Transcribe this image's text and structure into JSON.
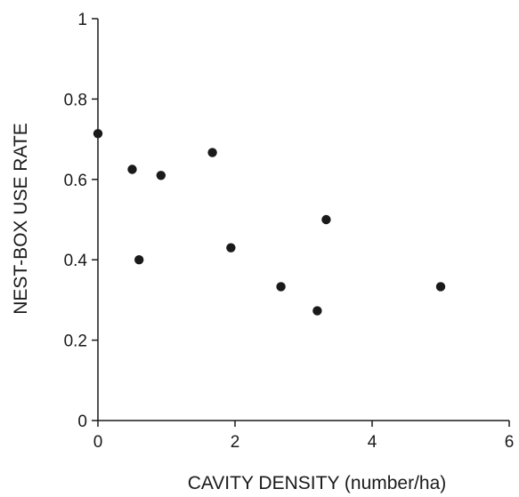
{
  "chart_data": {
    "type": "scatter",
    "title": "",
    "xlabel": "CAVITY DENSITY (number/ha)",
    "ylabel": "NEST-BOX USE RATE",
    "xlim": [
      0,
      6
    ],
    "ylim": [
      0,
      1
    ],
    "xticks": [
      0,
      2,
      4,
      6
    ],
    "xtick_labels": [
      "0",
      "2",
      "4",
      "6"
    ],
    "yticks": [
      0,
      0.2,
      0.4,
      0.6,
      0.8,
      1
    ],
    "ytick_labels": [
      "0",
      "0.2",
      "0.4",
      "0.6",
      "0.8",
      "1"
    ],
    "grid": false,
    "legend": "none",
    "marker_color": "#1a1a1a",
    "series": [
      {
        "points": [
          {
            "x": 0.0,
            "y": 0.714
          },
          {
            "x": 0.5,
            "y": 0.625
          },
          {
            "x": 0.6,
            "y": 0.4
          },
          {
            "x": 0.92,
            "y": 0.61
          },
          {
            "x": 1.67,
            "y": 0.667
          },
          {
            "x": 1.94,
            "y": 0.43
          },
          {
            "x": 2.67,
            "y": 0.333
          },
          {
            "x": 3.2,
            "y": 0.273
          },
          {
            "x": 3.33,
            "y": 0.5
          },
          {
            "x": 5.0,
            "y": 0.333
          }
        ]
      }
    ]
  }
}
